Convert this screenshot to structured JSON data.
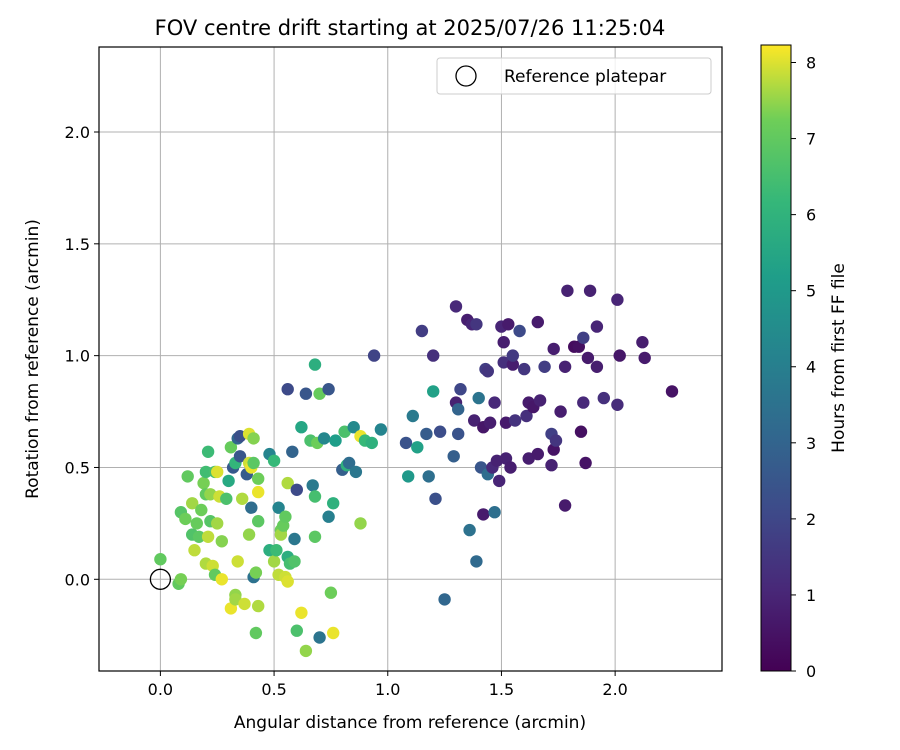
{
  "chart_data": {
    "type": "scatter",
    "title": "FOV centre drift starting at 2025/07/26 11:25:04",
    "xlabel": "Angular distance from reference (arcmin)",
    "ylabel": "Rotation from reference (arcmin)",
    "xlim": [
      -0.27,
      2.47
    ],
    "ylim": [
      -0.41,
      2.38
    ],
    "xticks": [
      "0.0",
      "0.5",
      "1.0",
      "1.5",
      "2.0"
    ],
    "xtick_values": [
      0.0,
      0.5,
      1.0,
      1.5,
      2.0
    ],
    "yticks": [
      "0.0",
      "0.5",
      "1.0",
      "1.5",
      "2.0"
    ],
    "ytick_values": [
      0.0,
      0.5,
      1.0,
      1.5,
      2.0
    ],
    "grid": true,
    "legend": {
      "position": "top-right",
      "entries": [
        "Reference platepar"
      ]
    },
    "reference_point": {
      "x": 0.0,
      "y": 0.0,
      "label": "Reference platepar"
    },
    "colorbar": {
      "label": "Hours from first FF file",
      "range": [
        0,
        8.23
      ],
      "ticks": [
        "0",
        "1",
        "2",
        "3",
        "4",
        "5",
        "6",
        "7",
        "8"
      ],
      "tick_values": [
        0,
        1,
        2,
        3,
        4,
        5,
        6,
        7,
        8
      ],
      "colormap": "viridis"
    },
    "points": [
      {
        "x": 0.0,
        "y": 0.09,
        "c": 7.0
      },
      {
        "x": 0.08,
        "y": -0.02,
        "c": 7.0
      },
      {
        "x": 0.09,
        "y": 0.0,
        "c": 7.3
      },
      {
        "x": 0.09,
        "y": 0.3,
        "c": 6.8
      },
      {
        "x": 0.11,
        "y": 0.27,
        "c": 7.2
      },
      {
        "x": 0.12,
        "y": 0.46,
        "c": 7.0
      },
      {
        "x": 0.14,
        "y": 0.2,
        "c": 6.7
      },
      {
        "x": 0.14,
        "y": 0.34,
        "c": 7.6
      },
      {
        "x": 0.15,
        "y": 0.13,
        "c": 7.8
      },
      {
        "x": 0.16,
        "y": 0.25,
        "c": 7.1
      },
      {
        "x": 0.17,
        "y": 0.19,
        "c": 6.9
      },
      {
        "x": 0.18,
        "y": 0.31,
        "c": 7.2
      },
      {
        "x": 0.19,
        "y": 0.43,
        "c": 7.3
      },
      {
        "x": 0.2,
        "y": 0.07,
        "c": 7.7
      },
      {
        "x": 0.2,
        "y": 0.38,
        "c": 7.0
      },
      {
        "x": 0.2,
        "y": 0.48,
        "c": 6.4
      },
      {
        "x": 0.21,
        "y": 0.57,
        "c": 6.3
      },
      {
        "x": 0.21,
        "y": 0.19,
        "c": 7.8
      },
      {
        "x": 0.22,
        "y": 0.26,
        "c": 6.8
      },
      {
        "x": 0.22,
        "y": 0.38,
        "c": 7.5
      },
      {
        "x": 0.23,
        "y": 0.06,
        "c": 7.9
      },
      {
        "x": 0.24,
        "y": 0.02,
        "c": 7.0
      },
      {
        "x": 0.24,
        "y": 0.48,
        "c": 6.5
      },
      {
        "x": 0.25,
        "y": 0.25,
        "c": 7.6
      },
      {
        "x": 0.25,
        "y": 0.48,
        "c": 8.0
      },
      {
        "x": 0.26,
        "y": 0.37,
        "c": 7.9
      },
      {
        "x": 0.27,
        "y": 0.17,
        "c": 7.4
      },
      {
        "x": 0.27,
        "y": 0.0,
        "c": 8.1
      },
      {
        "x": 0.29,
        "y": 0.36,
        "c": 6.6
      },
      {
        "x": 0.3,
        "y": 0.44,
        "c": 5.6
      },
      {
        "x": 0.31,
        "y": 0.59,
        "c": 7.1
      },
      {
        "x": 0.31,
        "y": -0.13,
        "c": 8.1
      },
      {
        "x": 0.32,
        "y": 0.5,
        "c": 2.6
      },
      {
        "x": 0.33,
        "y": -0.07,
        "c": 7.5
      },
      {
        "x": 0.33,
        "y": -0.09,
        "c": 7.6
      },
      {
        "x": 0.33,
        "y": 0.52,
        "c": 6.1
      },
      {
        "x": 0.34,
        "y": 0.63,
        "c": 3.1
      },
      {
        "x": 0.34,
        "y": 0.08,
        "c": 7.9
      },
      {
        "x": 0.35,
        "y": 0.64,
        "c": 2.3
      },
      {
        "x": 0.35,
        "y": 0.55,
        "c": 2.5
      },
      {
        "x": 0.36,
        "y": 0.36,
        "c": 7.7
      },
      {
        "x": 0.37,
        "y": -0.11,
        "c": 7.9
      },
      {
        "x": 0.38,
        "y": 0.47,
        "c": 2.7
      },
      {
        "x": 0.39,
        "y": 0.52,
        "c": 7.9
      },
      {
        "x": 0.39,
        "y": 0.65,
        "c": 8.0
      },
      {
        "x": 0.39,
        "y": 0.2,
        "c": 7.5
      },
      {
        "x": 0.4,
        "y": 0.32,
        "c": 3.3
      },
      {
        "x": 0.4,
        "y": 0.5,
        "c": 8.1
      },
      {
        "x": 0.41,
        "y": 0.63,
        "c": 7.4
      },
      {
        "x": 0.41,
        "y": 0.52,
        "c": 6.9
      },
      {
        "x": 0.41,
        "y": 0.01,
        "c": 3.5
      },
      {
        "x": 0.42,
        "y": 0.03,
        "c": 7.3
      },
      {
        "x": 0.42,
        "y": -0.24,
        "c": 7.0
      },
      {
        "x": 0.43,
        "y": -0.12,
        "c": 7.7
      },
      {
        "x": 0.43,
        "y": 0.39,
        "c": 8.1
      },
      {
        "x": 0.43,
        "y": 0.45,
        "c": 7.2
      },
      {
        "x": 0.43,
        "y": 0.26,
        "c": 6.9
      },
      {
        "x": 0.48,
        "y": 0.56,
        "c": 4.2
      },
      {
        "x": 0.48,
        "y": 0.13,
        "c": 5.8
      },
      {
        "x": 0.5,
        "y": 0.53,
        "c": 6.2
      },
      {
        "x": 0.5,
        "y": 0.08,
        "c": 7.6
      },
      {
        "x": 0.51,
        "y": 0.13,
        "c": 6.3
      },
      {
        "x": 0.52,
        "y": 0.02,
        "c": 7.8
      },
      {
        "x": 0.52,
        "y": 0.32,
        "c": 4.2
      },
      {
        "x": 0.53,
        "y": 0.22,
        "c": 7.2
      },
      {
        "x": 0.53,
        "y": 0.2,
        "c": 7.6
      },
      {
        "x": 0.54,
        "y": 0.24,
        "c": 7.1
      },
      {
        "x": 0.55,
        "y": 0.01,
        "c": 7.9
      },
      {
        "x": 0.55,
        "y": 0.28,
        "c": 7.0
      },
      {
        "x": 0.56,
        "y": -0.01,
        "c": 8.0
      },
      {
        "x": 0.56,
        "y": 0.85,
        "c": 2.1
      },
      {
        "x": 0.56,
        "y": 0.43,
        "c": 7.7
      },
      {
        "x": 0.56,
        "y": 0.1,
        "c": 5.8
      },
      {
        "x": 0.57,
        "y": 0.07,
        "c": 6.5
      },
      {
        "x": 0.58,
        "y": 0.57,
        "c": 3.0
      },
      {
        "x": 0.59,
        "y": 0.08,
        "c": 6.7
      },
      {
        "x": 0.59,
        "y": 0.18,
        "c": 3.7
      },
      {
        "x": 0.6,
        "y": 0.4,
        "c": 2.1
      },
      {
        "x": 0.6,
        "y": -0.23,
        "c": 6.6
      },
      {
        "x": 0.62,
        "y": 0.68,
        "c": 5.5
      },
      {
        "x": 0.62,
        "y": -0.15,
        "c": 8.1
      },
      {
        "x": 0.64,
        "y": -0.32,
        "c": 7.5
      },
      {
        "x": 0.64,
        "y": 0.83,
        "c": 2.5
      },
      {
        "x": 0.66,
        "y": 0.62,
        "c": 6.6
      },
      {
        "x": 0.67,
        "y": 0.42,
        "c": 3.8
      },
      {
        "x": 0.68,
        "y": 0.96,
        "c": 5.8
      },
      {
        "x": 0.68,
        "y": 0.37,
        "c": 6.5
      },
      {
        "x": 0.68,
        "y": 0.19,
        "c": 6.9
      },
      {
        "x": 0.69,
        "y": 0.61,
        "c": 7.2
      },
      {
        "x": 0.7,
        "y": 0.83,
        "c": 7.1
      },
      {
        "x": 0.7,
        "y": -0.26,
        "c": 3.6
      },
      {
        "x": 0.72,
        "y": 0.63,
        "c": 4.3
      },
      {
        "x": 0.74,
        "y": 0.28,
        "c": 4.0
      },
      {
        "x": 0.74,
        "y": 0.85,
        "c": 2.5
      },
      {
        "x": 0.75,
        "y": -0.06,
        "c": 7.2
      },
      {
        "x": 0.76,
        "y": -0.24,
        "c": 8.1
      },
      {
        "x": 0.76,
        "y": 0.34,
        "c": 5.9
      },
      {
        "x": 0.77,
        "y": 0.62,
        "c": 5.2
      },
      {
        "x": 0.8,
        "y": 0.49,
        "c": 2.8
      },
      {
        "x": 0.81,
        "y": 0.66,
        "c": 6.6
      },
      {
        "x": 0.82,
        "y": 0.51,
        "c": 5.9
      },
      {
        "x": 0.83,
        "y": 0.52,
        "c": 3.3
      },
      {
        "x": 0.85,
        "y": 0.68,
        "c": 4.4
      },
      {
        "x": 0.86,
        "y": 0.48,
        "c": 3.7
      },
      {
        "x": 0.88,
        "y": 0.25,
        "c": 7.5
      },
      {
        "x": 0.88,
        "y": 0.64,
        "c": 8.1
      },
      {
        "x": 0.9,
        "y": 0.62,
        "c": 6.2
      },
      {
        "x": 0.93,
        "y": 0.61,
        "c": 5.9
      },
      {
        "x": 0.94,
        "y": 1.0,
        "c": 1.9
      },
      {
        "x": 0.97,
        "y": 0.67,
        "c": 4.2
      },
      {
        "x": 1.08,
        "y": 0.61,
        "c": 2.4
      },
      {
        "x": 1.09,
        "y": 0.46,
        "c": 5.0
      },
      {
        "x": 1.11,
        "y": 0.73,
        "c": 3.8
      },
      {
        "x": 1.13,
        "y": 0.59,
        "c": 5.3
      },
      {
        "x": 1.15,
        "y": 1.11,
        "c": 1.7
      },
      {
        "x": 1.17,
        "y": 0.65,
        "c": 2.7
      },
      {
        "x": 1.18,
        "y": 0.46,
        "c": 3.4
      },
      {
        "x": 1.2,
        "y": 1.0,
        "c": 1.3
      },
      {
        "x": 1.2,
        "y": 0.84,
        "c": 5.3
      },
      {
        "x": 1.21,
        "y": 0.36,
        "c": 2.3
      },
      {
        "x": 1.23,
        "y": 0.66,
        "c": 2.2
      },
      {
        "x": 1.25,
        "y": -0.09,
        "c": 3.1
      },
      {
        "x": 1.29,
        "y": 0.55,
        "c": 2.8
      },
      {
        "x": 1.3,
        "y": 1.22,
        "c": 1.1
      },
      {
        "x": 1.3,
        "y": 0.79,
        "c": 0.9
      },
      {
        "x": 1.31,
        "y": 0.65,
        "c": 2.4
      },
      {
        "x": 1.31,
        "y": 0.76,
        "c": 3.0
      },
      {
        "x": 1.32,
        "y": 0.85,
        "c": 2.0
      },
      {
        "x": 1.35,
        "y": 1.16,
        "c": 0.8
      },
      {
        "x": 1.36,
        "y": 0.22,
        "c": 3.5
      },
      {
        "x": 1.37,
        "y": 1.14,
        "c": 1.0
      },
      {
        "x": 1.38,
        "y": 0.71,
        "c": 0.9
      },
      {
        "x": 1.39,
        "y": 0.08,
        "c": 3.2
      },
      {
        "x": 1.39,
        "y": 1.14,
        "c": 1.5
      },
      {
        "x": 1.4,
        "y": 0.81,
        "c": 3.6
      },
      {
        "x": 1.41,
        "y": 0.5,
        "c": 2.5
      },
      {
        "x": 1.42,
        "y": 0.68,
        "c": 0.6
      },
      {
        "x": 1.42,
        "y": 0.29,
        "c": 0.7
      },
      {
        "x": 1.43,
        "y": 0.94,
        "c": 1.7
      },
      {
        "x": 1.44,
        "y": 0.47,
        "c": 3.3
      },
      {
        "x": 1.44,
        "y": 0.93,
        "c": 1.5
      },
      {
        "x": 1.45,
        "y": 0.7,
        "c": 0.8
      },
      {
        "x": 1.46,
        "y": 0.5,
        "c": 1.1
      },
      {
        "x": 1.47,
        "y": 0.3,
        "c": 3.4
      },
      {
        "x": 1.47,
        "y": 0.79,
        "c": 1.1
      },
      {
        "x": 1.48,
        "y": 0.53,
        "c": 0.9
      },
      {
        "x": 1.49,
        "y": 0.44,
        "c": 1.0
      },
      {
        "x": 1.5,
        "y": 1.13,
        "c": 1.0
      },
      {
        "x": 1.51,
        "y": 0.97,
        "c": 1.3
      },
      {
        "x": 1.51,
        "y": 1.06,
        "c": 0.8
      },
      {
        "x": 1.52,
        "y": 0.7,
        "c": 0.7
      },
      {
        "x": 1.52,
        "y": 0.54,
        "c": 0.9
      },
      {
        "x": 1.53,
        "y": 1.14,
        "c": 0.7
      },
      {
        "x": 1.54,
        "y": 0.5,
        "c": 0.8
      },
      {
        "x": 1.55,
        "y": 0.96,
        "c": 0.8
      },
      {
        "x": 1.55,
        "y": 1.0,
        "c": 1.6
      },
      {
        "x": 1.56,
        "y": 0.71,
        "c": 1.4
      },
      {
        "x": 1.58,
        "y": 1.11,
        "c": 2.1
      },
      {
        "x": 1.6,
        "y": 0.94,
        "c": 1.5
      },
      {
        "x": 1.61,
        "y": 0.73,
        "c": 1.3
      },
      {
        "x": 1.62,
        "y": 0.79,
        "c": 0.7
      },
      {
        "x": 1.62,
        "y": 0.54,
        "c": 0.8
      },
      {
        "x": 1.64,
        "y": 0.77,
        "c": 0.6
      },
      {
        "x": 1.66,
        "y": 1.15,
        "c": 0.7
      },
      {
        "x": 1.66,
        "y": 0.56,
        "c": 0.7
      },
      {
        "x": 1.67,
        "y": 0.8,
        "c": 0.9
      },
      {
        "x": 1.69,
        "y": 0.95,
        "c": 1.7
      },
      {
        "x": 1.72,
        "y": 0.51,
        "c": 0.9
      },
      {
        "x": 1.72,
        "y": 0.65,
        "c": 1.8
      },
      {
        "x": 1.73,
        "y": 0.58,
        "c": 0.5
      },
      {
        "x": 1.73,
        "y": 1.03,
        "c": 0.8
      },
      {
        "x": 1.74,
        "y": 0.62,
        "c": 1.5
      },
      {
        "x": 1.76,
        "y": 0.75,
        "c": 0.8
      },
      {
        "x": 1.78,
        "y": 0.33,
        "c": 0.7
      },
      {
        "x": 1.78,
        "y": 0.95,
        "c": 0.9
      },
      {
        "x": 1.79,
        "y": 1.29,
        "c": 0.9
      },
      {
        "x": 1.82,
        "y": 1.04,
        "c": 0.3
      },
      {
        "x": 1.84,
        "y": 1.04,
        "c": 0.4
      },
      {
        "x": 1.85,
        "y": 0.66,
        "c": 0.4
      },
      {
        "x": 1.86,
        "y": 0.79,
        "c": 1.1
      },
      {
        "x": 1.86,
        "y": 1.08,
        "c": 1.8
      },
      {
        "x": 1.87,
        "y": 0.52,
        "c": 0.5
      },
      {
        "x": 1.88,
        "y": 0.99,
        "c": 0.7
      },
      {
        "x": 1.89,
        "y": 1.29,
        "c": 0.9
      },
      {
        "x": 1.92,
        "y": 1.13,
        "c": 1.0
      },
      {
        "x": 1.92,
        "y": 0.95,
        "c": 0.8
      },
      {
        "x": 1.95,
        "y": 0.81,
        "c": 1.3
      },
      {
        "x": 2.01,
        "y": 1.25,
        "c": 1.0
      },
      {
        "x": 2.01,
        "y": 0.78,
        "c": 1.2
      },
      {
        "x": 2.02,
        "y": 1.0,
        "c": 0.6
      },
      {
        "x": 2.12,
        "y": 1.06,
        "c": 0.8
      },
      {
        "x": 2.13,
        "y": 0.99,
        "c": 0.7
      },
      {
        "x": 2.25,
        "y": 0.84,
        "c": 0.5
      }
    ]
  }
}
